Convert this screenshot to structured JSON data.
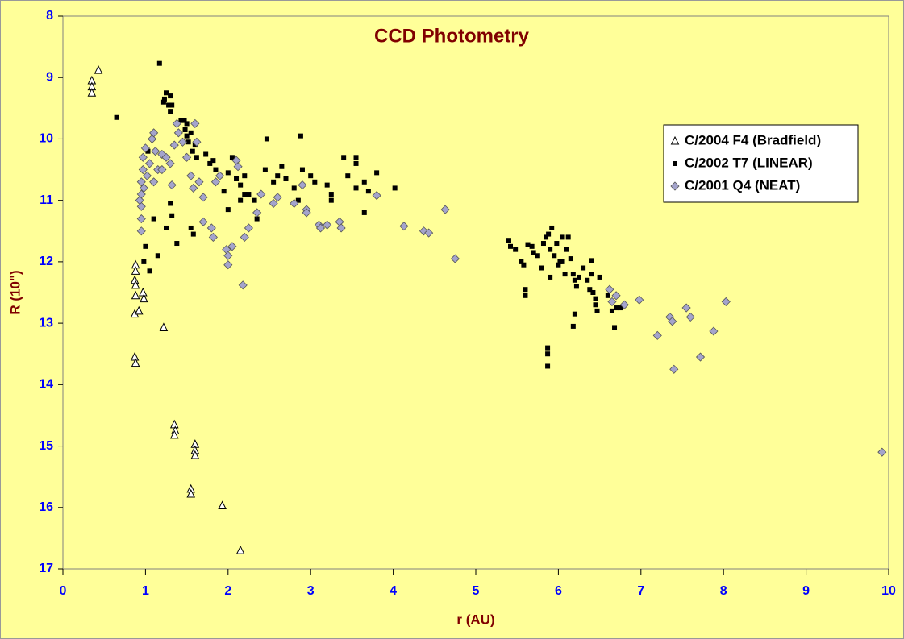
{
  "chart_data": {
    "type": "scatter",
    "title": "CCD Photometry",
    "xlabel": "r (AU)",
    "ylabel": "R (10\")",
    "xlim": [
      0,
      10
    ],
    "xticks": [
      0,
      1,
      2,
      3,
      4,
      5,
      6,
      7,
      8,
      9,
      10
    ],
    "ylim": [
      8,
      17
    ],
    "yticks": [
      8,
      9,
      10,
      11,
      12,
      13,
      14,
      15,
      16,
      17
    ],
    "y_reversed": true,
    "legend": "upper-right",
    "series": [
      {
        "name": "C/2004 F4 (Bradfield)",
        "marker": "triangle",
        "color": "#ffffff",
        "x": [
          0.35,
          0.35,
          0.35,
          0.43,
          0.88,
          0.88,
          0.87,
          0.88,
          0.88,
          0.87,
          0.92,
          0.97,
          0.98,
          0.87,
          0.88,
          1.22,
          1.35,
          1.36,
          1.35,
          1.6,
          1.6,
          1.6,
          1.55,
          1.55,
          1.93,
          2.15
        ],
        "values": [
          9.05,
          9.15,
          9.25,
          8.88,
          12.05,
          12.15,
          12.3,
          12.38,
          12.55,
          12.85,
          12.8,
          12.5,
          12.6,
          13.55,
          13.65,
          13.07,
          14.65,
          14.75,
          14.82,
          14.97,
          15.07,
          15.15,
          15.7,
          15.78,
          15.97,
          16.7
        ]
      },
      {
        "name": "C/2002 T7 (LINEAR)",
        "marker": "square",
        "color": "#000000",
        "x": [
          0.65,
          1.17,
          1.23,
          1.25,
          1.3,
          1.32,
          1.28,
          1.3,
          1.22,
          1.43,
          1.47,
          1.5,
          1.48,
          1.5,
          1.55,
          1.52,
          1.6,
          1.57,
          1.62,
          1.73,
          1.78,
          1.82,
          1.85,
          1.9,
          2.0,
          2.05,
          2.1,
          2.15,
          2.2,
          2.25,
          2.32,
          2.35,
          2.45,
          2.47,
          2.55,
          2.6,
          2.65,
          2.7,
          2.8,
          2.85,
          2.88,
          2.9,
          3.0,
          3.05,
          3.2,
          3.25,
          3.25,
          3.4,
          3.45,
          3.55,
          3.55,
          3.55,
          3.65,
          3.7,
          3.65,
          3.8,
          4.02,
          1.0,
          0.98,
          1.05,
          1.15,
          1.25,
          1.3,
          1.32,
          1.38,
          1.55,
          1.58,
          1.1,
          1.1,
          1.03,
          1.95,
          2.0,
          2.15,
          2.2,
          5.4,
          5.42,
          5.48,
          5.55,
          5.58,
          5.6,
          5.6,
          5.63,
          5.68,
          5.7,
          5.75,
          5.8,
          5.82,
          5.85,
          5.88,
          5.9,
          5.92,
          5.95,
          5.98,
          6.02,
          6.05,
          6.08,
          6.1,
          6.12,
          6.15,
          6.18,
          6.2,
          6.22,
          6.25,
          6.3,
          6.35,
          6.38,
          6.4,
          6.42,
          6.45,
          6.45,
          6.47,
          6.4,
          6.5,
          6.6,
          6.65,
          6.7,
          6.68,
          6.75,
          6.18,
          6.2,
          5.87,
          5.87,
          5.87,
          5.9,
          6.0,
          6.05
        ],
        "values": [
          9.65,
          8.77,
          9.35,
          9.25,
          9.3,
          9.45,
          9.45,
          9.55,
          9.4,
          9.7,
          9.7,
          9.75,
          9.85,
          9.95,
          9.9,
          10.05,
          10.1,
          10.2,
          10.3,
          10.25,
          10.4,
          10.35,
          10.5,
          10.6,
          10.55,
          10.3,
          10.65,
          10.75,
          10.6,
          10.9,
          11.0,
          11.3,
          10.5,
          10.0,
          10.7,
          10.6,
          10.45,
          10.65,
          10.8,
          11.0,
          9.95,
          10.5,
          10.6,
          10.7,
          10.75,
          10.9,
          11.0,
          10.3,
          10.6,
          10.3,
          10.4,
          10.8,
          10.7,
          10.85,
          11.2,
          10.55,
          10.8,
          11.75,
          12.0,
          12.15,
          11.9,
          11.45,
          11.05,
          11.25,
          11.7,
          11.45,
          11.55,
          11.3,
          10.7,
          10.2,
          10.85,
          11.15,
          11.0,
          10.9,
          11.65,
          11.75,
          11.8,
          12.0,
          12.05,
          12.45,
          12.55,
          11.72,
          11.75,
          11.85,
          11.9,
          12.1,
          11.7,
          11.6,
          11.55,
          11.8,
          11.45,
          11.9,
          11.7,
          12.0,
          11.6,
          12.2,
          11.8,
          11.6,
          11.95,
          12.2,
          12.3,
          12.4,
          12.25,
          12.1,
          12.3,
          12.45,
          12.2,
          12.5,
          12.6,
          12.7,
          12.8,
          11.98,
          12.25,
          12.55,
          12.8,
          12.75,
          13.07,
          12.75,
          13.05,
          12.85,
          13.4,
          13.5,
          13.7,
          12.25,
          12.05,
          12.0
        ]
      },
      {
        "name": "C/2001 Q4 (NEAT)",
        "marker": "diamond",
        "color": "#a4a4cc",
        "x": [
          0.95,
          0.95,
          0.95,
          0.95,
          0.95,
          0.97,
          0.97,
          1.0,
          1.02,
          1.05,
          1.08,
          1.1,
          1.12,
          1.15,
          1.2,
          1.25,
          1.3,
          1.32,
          1.35,
          1.38,
          1.4,
          1.45,
          1.5,
          1.55,
          1.58,
          1.6,
          1.62,
          1.65,
          1.7,
          1.7,
          1.8,
          1.82,
          1.85,
          1.9,
          1.98,
          2.0,
          2.0,
          2.05,
          2.1,
          2.12,
          2.18,
          2.2,
          2.25,
          2.35,
          2.4,
          2.55,
          2.6,
          2.8,
          2.9,
          2.95,
          2.95,
          3.1,
          3.12,
          3.2,
          3.35,
          3.37,
          3.8,
          4.13,
          4.37,
          4.43,
          4.63,
          4.75,
          6.62,
          6.65,
          6.7,
          6.8,
          6.98,
          7.2,
          7.35,
          7.38,
          7.4,
          7.55,
          7.6,
          7.72,
          7.88,
          8.03,
          9.92,
          0.93,
          0.98,
          1.1,
          1.2
        ],
        "values": [
          11.5,
          11.3,
          11.1,
          10.9,
          10.7,
          10.5,
          10.3,
          10.15,
          10.6,
          10.4,
          10.0,
          9.9,
          10.2,
          10.5,
          10.25,
          10.3,
          10.4,
          10.75,
          10.1,
          9.75,
          9.9,
          10.05,
          10.3,
          10.6,
          10.8,
          9.75,
          10.05,
          10.7,
          11.35,
          10.95,
          11.45,
          11.6,
          10.7,
          10.6,
          11.8,
          11.9,
          12.05,
          11.75,
          10.35,
          10.45,
          12.38,
          11.6,
          11.45,
          11.2,
          10.9,
          11.05,
          10.95,
          11.05,
          10.75,
          11.15,
          11.2,
          11.4,
          11.45,
          11.4,
          11.35,
          11.45,
          10.92,
          11.42,
          11.5,
          11.53,
          11.15,
          11.95,
          12.45,
          12.65,
          12.55,
          12.7,
          12.62,
          13.2,
          12.9,
          12.97,
          13.75,
          12.75,
          12.9,
          13.55,
          13.13,
          12.65,
          15.1,
          11.0,
          10.8,
          10.7,
          10.5
        ]
      }
    ]
  }
}
